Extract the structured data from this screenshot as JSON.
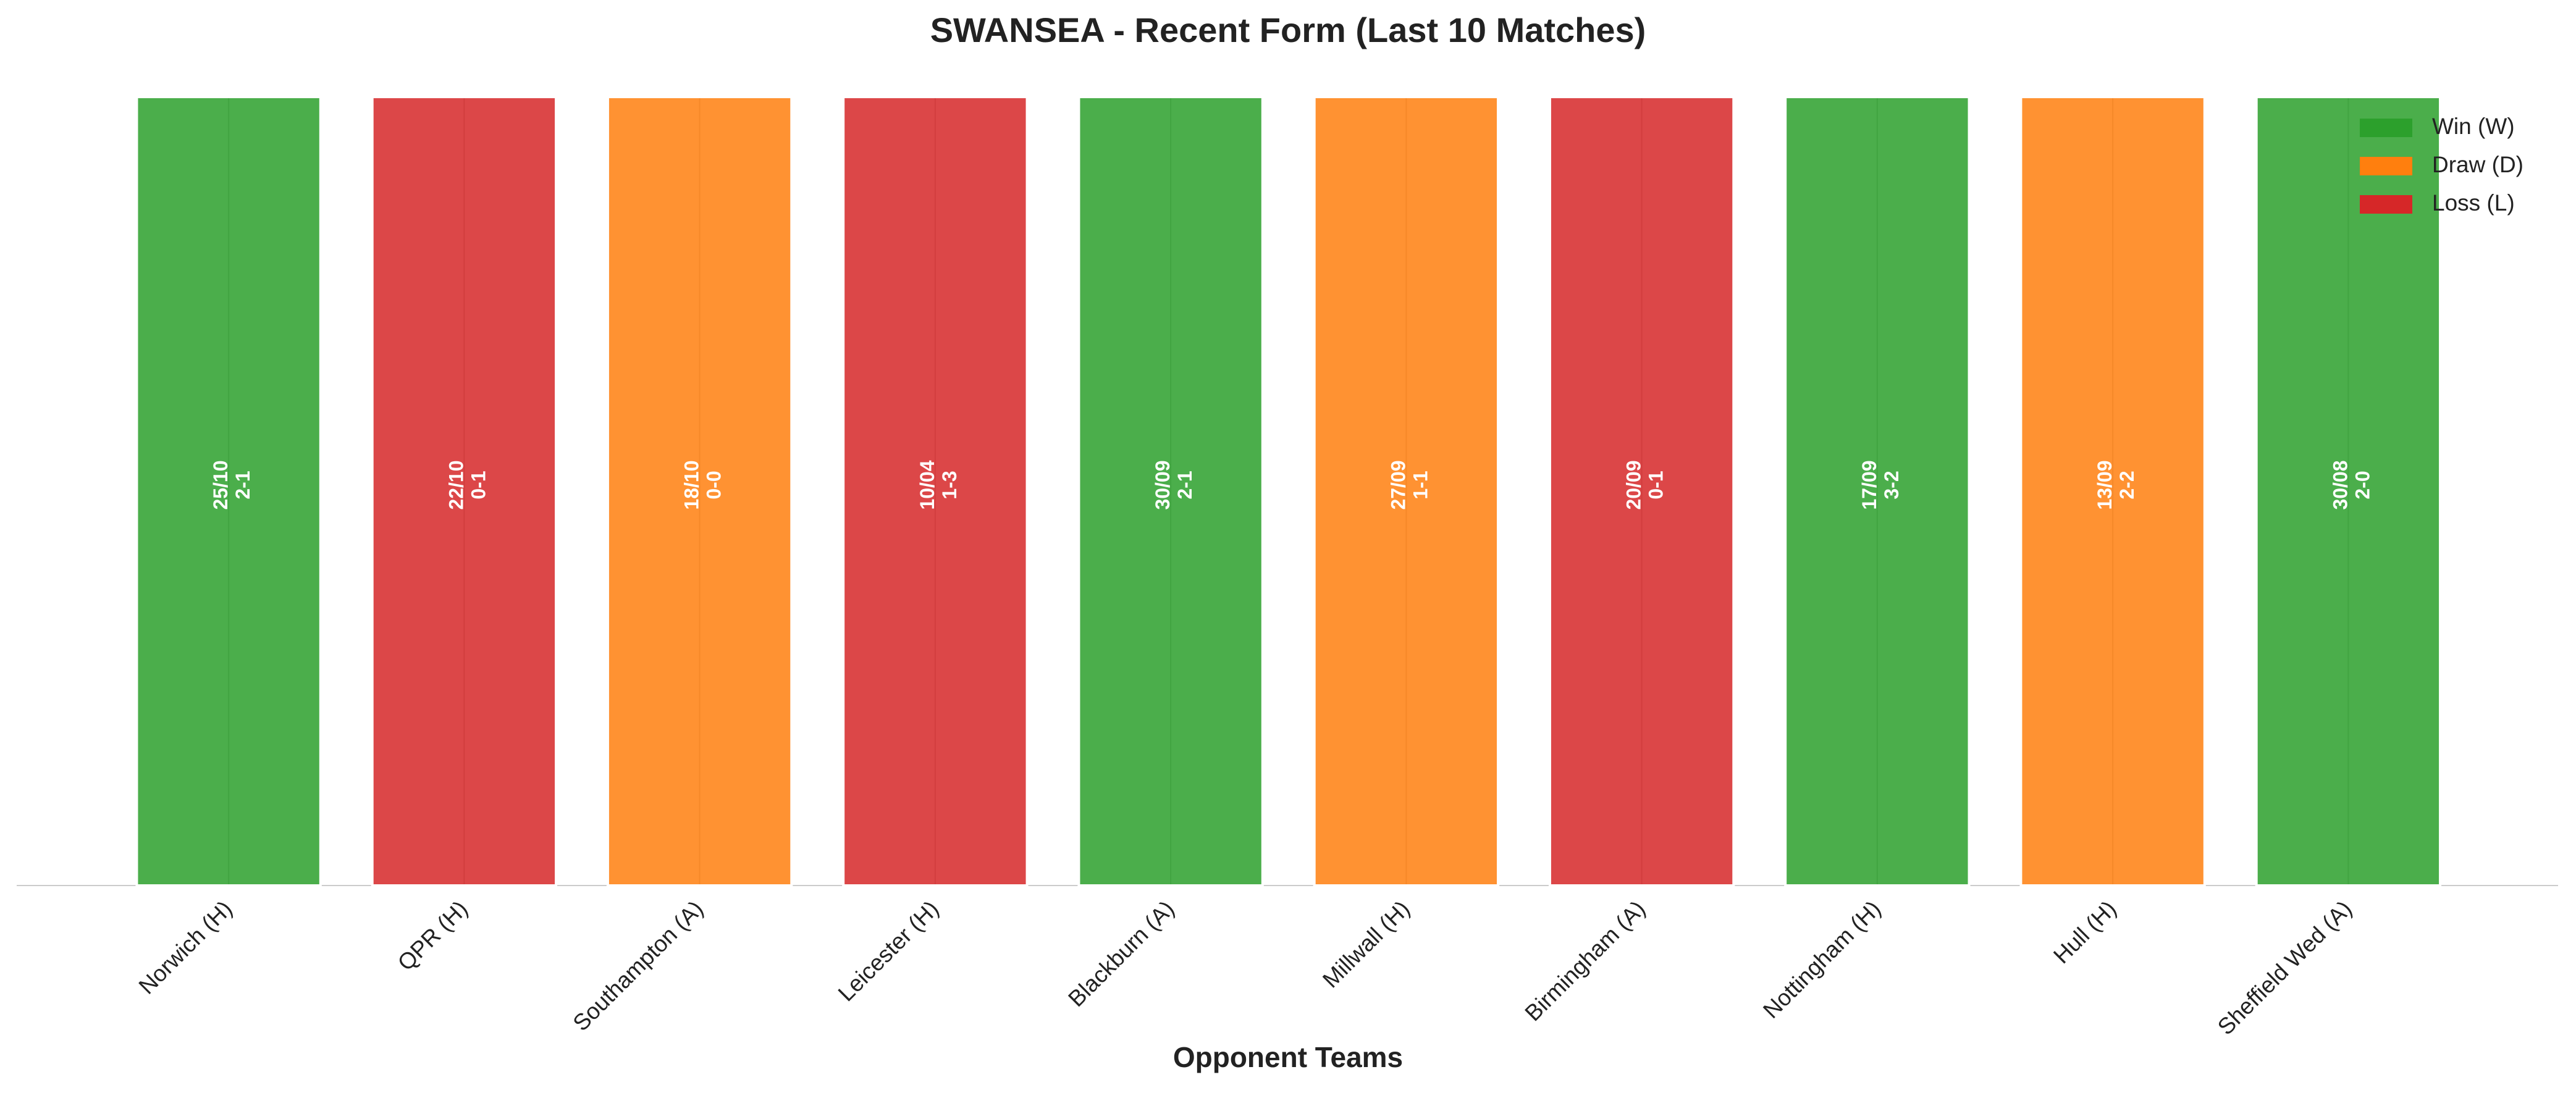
{
  "chart_data": {
    "type": "bar",
    "title": "SWANSEA - Recent Form (Last 10 Matches)",
    "x_label": "Opponent Teams",
    "categories": [
      "Norwich (H)",
      "QPR (H)",
      "Southampton (A)",
      "Leicester (H)",
      "Blackburn (A)",
      "Millwall (H)",
      "Birmingham (A)",
      "Nottingham (H)",
      "Hull (H)",
      "Sheffield Wed (A)"
    ],
    "values": [
      1,
      1,
      1,
      1,
      1,
      1,
      1,
      1,
      1,
      1
    ],
    "dates": [
      "25/10",
      "22/10",
      "18/10",
      "10/04",
      "30/09",
      "27/09",
      "20/09",
      "17/09",
      "13/09",
      "30/08"
    ],
    "scores": [
      "2-1",
      "0-1",
      "0-0",
      "1-3",
      "2-1",
      "1-1",
      "0-1",
      "3-2",
      "2-2",
      "2-0"
    ],
    "colors": [
      "#2ca02c",
      "#d62728",
      "#ff7f0e",
      "#d62728",
      "#2ca02c",
      "#ff7f0e",
      "#d62728",
      "#2ca02c",
      "#ff7f0e",
      "#2ca02c"
    ],
    "ylim": [
      0,
      1
    ],
    "grid": true,
    "legend_position": "upper right",
    "legend": [
      {
        "label": "Win (W)",
        "color": "#2ca02c"
      },
      {
        "label": "Draw (D)",
        "color": "#ff7f0e"
      },
      {
        "label": "Loss (L)",
        "color": "#d62728"
      }
    ]
  }
}
